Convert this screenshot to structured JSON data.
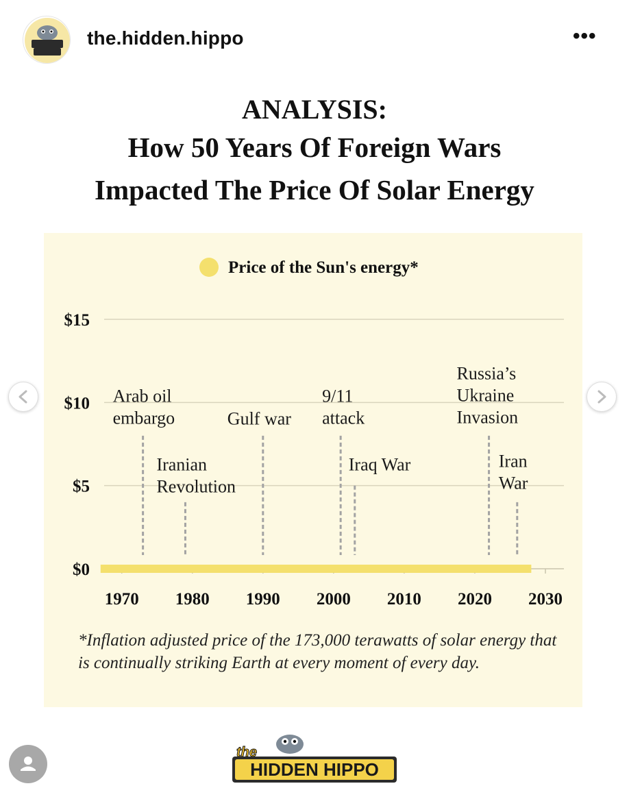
{
  "header": {
    "username": "the.hidden.hippo",
    "more_label": "•••",
    "avatar_logo_text": "the HIDDEN HIPPO"
  },
  "headline": {
    "line1": "ANALYSIS:",
    "line2": "How 50 Years Of Foreign Wars",
    "line3": "Impacted The Price Of Solar Energy"
  },
  "navigation": {
    "prev_icon": "chevron-left-icon",
    "next_icon": "chevron-right-icon"
  },
  "chart_data": {
    "type": "line",
    "title": "ANALYSIS: How 50 Years Of Foreign Wars Impacted The Price Of Solar Energy",
    "legend": {
      "label": "Price of the Sun's energy*",
      "placement": "top-center"
    },
    "series": [
      {
        "name": "Price of the Sun's energy*",
        "x": [
          1967,
          2028
        ],
        "values": [
          0,
          0
        ],
        "color": "#f4e06d"
      }
    ],
    "xlim": [
      1967,
      2031
    ],
    "ylim": [
      0,
      15
    ],
    "x_ticks": [
      1970,
      1980,
      1990,
      2000,
      2010,
      2020,
      2030
    ],
    "x_tick_labels": [
      "1970",
      "1980",
      "1990",
      "2000",
      "2010",
      "2020",
      "2030"
    ],
    "y_ticks": [
      0,
      5,
      10,
      15
    ],
    "y_tick_labels": [
      "$0",
      "$5",
      "$10",
      "$15"
    ],
    "grid": true,
    "xlabel": "",
    "ylabel": "",
    "events": [
      {
        "year": 1973,
        "lines": [
          "Arab oil",
          "embargo"
        ],
        "label_y": 10,
        "line_top_y": 8.0
      },
      {
        "year": 1979,
        "lines": [
          "Iranian",
          "Revolution"
        ],
        "label_y": 5,
        "line_top_y": 4.0
      },
      {
        "year": 1990,
        "lines": [
          "Gulf war"
        ],
        "label_y": 10,
        "line_top_y": 8.0
      },
      {
        "year": 2001,
        "lines": [
          "9/11",
          "attack"
        ],
        "label_y": 10,
        "line_top_y": 8.0
      },
      {
        "year": 2003,
        "lines": [
          "Iraq War"
        ],
        "label_y": 5,
        "line_top_y": 5.0
      },
      {
        "year": 2022,
        "lines": [
          "Russia’s",
          "Ukraine",
          "Invasion"
        ],
        "label_y": 10,
        "line_top_y": 8.0
      },
      {
        "year": 2026,
        "lines": [
          "Iran",
          "War"
        ],
        "label_y": 5,
        "line_top_y": 4.0
      }
    ]
  },
  "footnote": "*Inflation adjusted price of the 173,000 terawatts of solar energy that is continually striking Earth at every moment of every day.",
  "footer": {
    "logo_text": "the HIDDEN HIPPO",
    "profile_icon": "user-icon"
  }
}
